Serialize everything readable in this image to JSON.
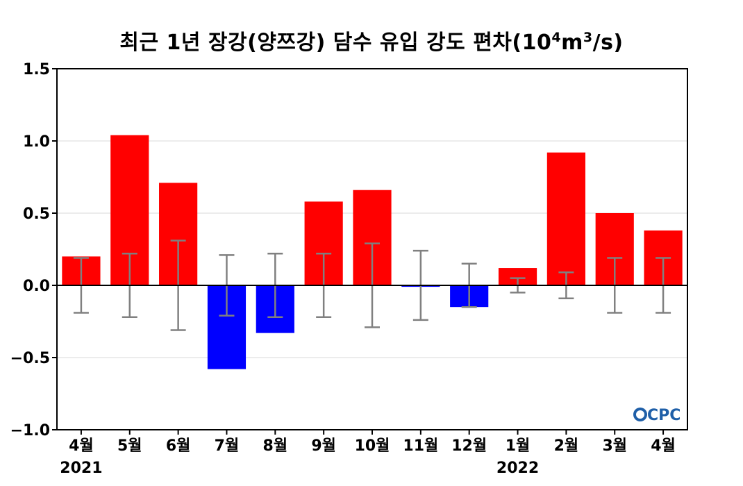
{
  "chart_data": {
    "type": "bar",
    "title_prefix": "최근 1년 장강(양쯔강) 담수 유입 강도 편차(10",
    "title_exp1": "4",
    "title_mid": "m",
    "title_exp2": "3",
    "title_suffix": "/s)",
    "categories": [
      "4월",
      "5월",
      "6월",
      "7월",
      "8월",
      "9월",
      "10월",
      "11월",
      "12월",
      "1월",
      "2월",
      "3월",
      "4월"
    ],
    "years": [
      {
        "label": "2021",
        "index": 0
      },
      {
        "label": "2022",
        "index": 9
      }
    ],
    "values": [
      0.2,
      1.04,
      0.71,
      -0.58,
      -0.33,
      0.58,
      0.66,
      -0.01,
      -0.15,
      0.12,
      0.92,
      0.5,
      0.38
    ],
    "error_bounds": [
      0.19,
      0.22,
      0.31,
      0.21,
      0.22,
      0.22,
      0.29,
      0.24,
      0.15,
      0.05,
      0.09,
      0.19,
      0.19
    ],
    "ylim": [
      -1.0,
      1.5
    ],
    "yticks": [
      "1.5",
      "1.0",
      "0.5",
      "0.0",
      "−0.5",
      "−1.0"
    ],
    "ytick_values": [
      1.5,
      1.0,
      0.5,
      0.0,
      -0.5,
      -1.0
    ],
    "grid": true,
    "colors": {
      "positive": "#ff0000",
      "negative": "#0000ff",
      "error": "#808080",
      "grid": "#d9d9d9"
    },
    "logo": "OCPC"
  }
}
